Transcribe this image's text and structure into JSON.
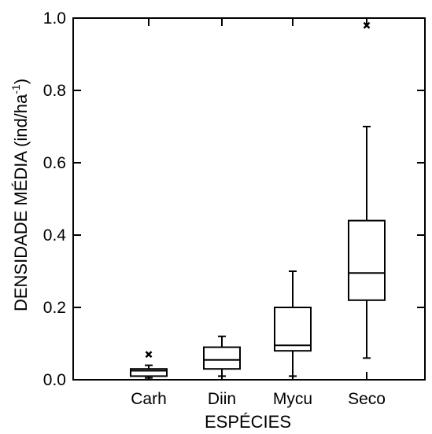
{
  "chart_data": {
    "type": "box",
    "xlabel": "ESPÉCIES",
    "ylabel": "DENSIDADE MÉDIA (ind/ha",
    "ylabel_sup": "-1",
    "ylabel_close": ")",
    "ylim": [
      0,
      1.0
    ],
    "yticks": [
      "0.0",
      "0.2",
      "0.4",
      "0.6",
      "0.8",
      "1.0"
    ],
    "yticks_values": [
      0,
      0.2,
      0.4,
      0.6,
      0.8,
      1.0
    ],
    "categories": [
      "Carh",
      "Diin",
      "Mycu",
      "Seco"
    ],
    "boxes": [
      {
        "category": "Carh",
        "whisker_low": 0.005,
        "q1": 0.01,
        "median": 0.025,
        "q3": 0.03,
        "whisker_high": 0.04,
        "outliers": [
          0.07
        ]
      },
      {
        "category": "Diin",
        "whisker_low": 0.01,
        "q1": 0.03,
        "median": 0.055,
        "q3": 0.09,
        "whisker_high": 0.12,
        "outliers": []
      },
      {
        "category": "Mycu",
        "whisker_low": 0.01,
        "q1": 0.08,
        "median": 0.095,
        "q3": 0.2,
        "whisker_high": 0.3,
        "outliers": []
      },
      {
        "category": "Seco",
        "whisker_low": 0.06,
        "q1": 0.22,
        "median": 0.295,
        "q3": 0.44,
        "whisker_high": 0.7,
        "outliers": [
          0.98
        ]
      }
    ],
    "grid": false,
    "legend": "none"
  }
}
